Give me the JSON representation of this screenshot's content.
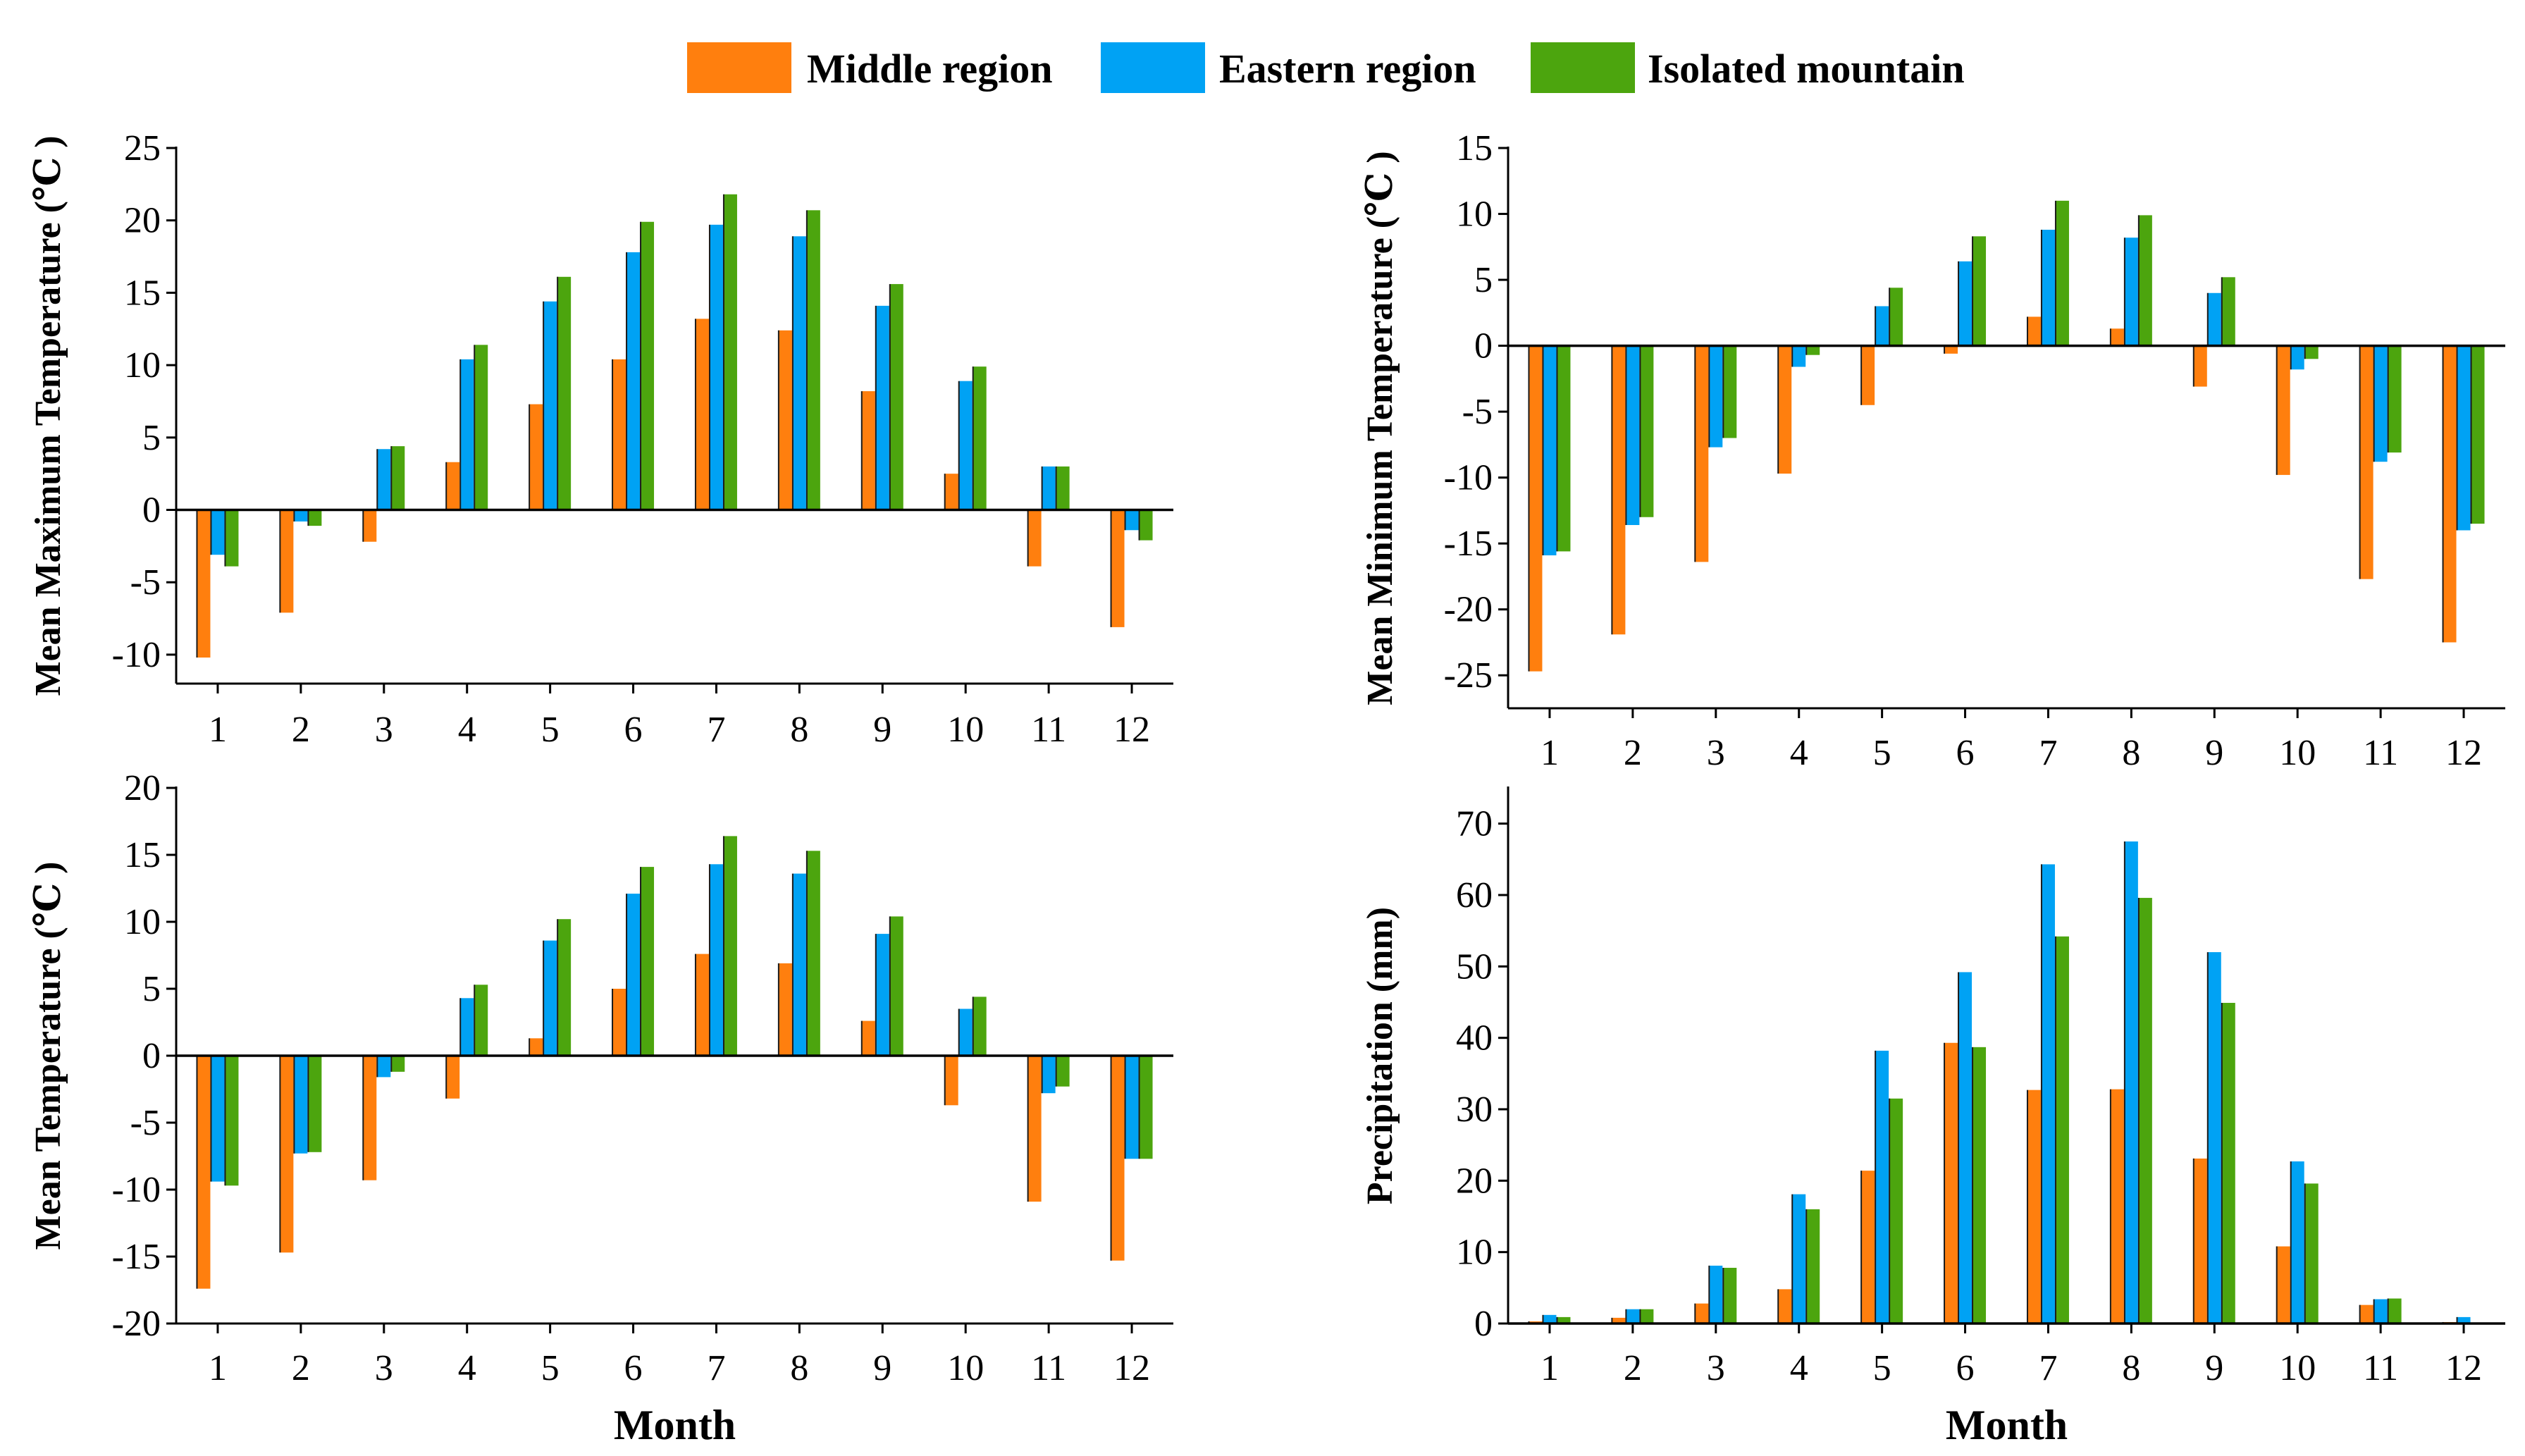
{
  "legend": [
    {
      "name": "Middle region",
      "color": "#FF7F0E"
    },
    {
      "name": "Eastern region",
      "color": "#00A2F4"
    },
    {
      "name": "Isolated mountain",
      "color": "#4CA50E"
    }
  ],
  "chart_data": [
    {
      "type": "bar",
      "ylabel": "Mean Maximum Temperature (℃ )",
      "xlabel": "",
      "categories": [
        "1",
        "2",
        "3",
        "4",
        "5",
        "6",
        "7",
        "8",
        "9",
        "10",
        "11",
        "12"
      ],
      "ylim": [
        -12,
        25
      ],
      "yticks": [
        -10,
        -5,
        0,
        5,
        10,
        15,
        20,
        25
      ],
      "series": [
        {
          "name": "Middle region",
          "values": [
            -10.2,
            -7.1,
            -2.2,
            3.3,
            7.3,
            10.4,
            13.2,
            12.4,
            8.2,
            2.5,
            -3.9,
            -8.1
          ]
        },
        {
          "name": "Eastern region",
          "values": [
            -3.1,
            -0.8,
            4.2,
            10.4,
            14.4,
            17.8,
            19.7,
            18.9,
            14.1,
            8.9,
            3.0,
            -1.4
          ]
        },
        {
          "name": "Isolated mountain",
          "values": [
            -3.9,
            -1.1,
            4.4,
            11.4,
            16.1,
            19.9,
            21.8,
            20.7,
            15.6,
            9.9,
            3.0,
            -2.1
          ]
        }
      ]
    },
    {
      "type": "bar",
      "ylabel": "Mean Minimum Temperature (℃ )",
      "xlabel": "",
      "categories": [
        "1",
        "2",
        "3",
        "4",
        "5",
        "6",
        "7",
        "8",
        "9",
        "10",
        "11",
        "12"
      ],
      "ylim": [
        -27.5,
        15
      ],
      "yticks": [
        -25,
        -20,
        -15,
        -10,
        -5,
        0,
        5,
        10,
        15
      ],
      "series": [
        {
          "name": "Middle region",
          "values": [
            -24.7,
            -21.9,
            -16.4,
            -9.7,
            -4.5,
            -0.6,
            2.2,
            1.3,
            -3.1,
            -9.8,
            -17.7,
            -22.5
          ]
        },
        {
          "name": "Eastern region",
          "values": [
            -15.9,
            -13.6,
            -7.7,
            -1.6,
            3.0,
            6.4,
            8.8,
            8.2,
            4.0,
            -1.8,
            -8.8,
            -14.0
          ]
        },
        {
          "name": "Isolated mountain",
          "values": [
            -15.6,
            -13.0,
            -7.0,
            -0.7,
            4.4,
            8.3,
            11.0,
            9.9,
            5.2,
            -1.0,
            -8.1,
            -13.5
          ]
        }
      ]
    },
    {
      "type": "bar",
      "ylabel": "Mean Temperature (℃ )",
      "xlabel": "Month",
      "categories": [
        "1",
        "2",
        "3",
        "4",
        "5",
        "6",
        "7",
        "8",
        "9",
        "10",
        "11",
        "12"
      ],
      "ylim": [
        -20,
        20
      ],
      "yticks": [
        -20,
        -15,
        -10,
        -5,
        0,
        5,
        10,
        15,
        20
      ],
      "series": [
        {
          "name": "Middle region",
          "values": [
            -17.4,
            -14.7,
            -9.3,
            -3.2,
            1.3,
            5.0,
            7.6,
            6.9,
            2.6,
            -3.7,
            -10.9,
            -15.3
          ]
        },
        {
          "name": "Eastern region",
          "values": [
            -9.4,
            -7.3,
            -1.6,
            4.3,
            8.6,
            12.1,
            14.3,
            13.6,
            9.1,
            3.5,
            -2.8,
            -7.7
          ]
        },
        {
          "name": "Isolated mountain",
          "values": [
            -9.7,
            -7.2,
            -1.2,
            5.3,
            10.2,
            14.1,
            16.4,
            15.3,
            10.4,
            4.4,
            -2.3,
            -7.7
          ]
        }
      ]
    },
    {
      "type": "bar",
      "ylabel": "Precipitation (mm)",
      "xlabel": "Month",
      "categories": [
        "1",
        "2",
        "3",
        "4",
        "5",
        "6",
        "7",
        "8",
        "9",
        "10",
        "11",
        "12"
      ],
      "ylim": [
        0,
        75
      ],
      "yticks": [
        0,
        10,
        20,
        30,
        40,
        50,
        60,
        70
      ],
      "series": [
        {
          "name": "Middle region",
          "values": [
            0.3,
            0.8,
            2.8,
            4.8,
            21.4,
            39.3,
            32.7,
            32.8,
            23.1,
            10.8,
            2.6,
            0.2
          ]
        },
        {
          "name": "Eastern region",
          "values": [
            1.2,
            2.0,
            8.1,
            18.1,
            38.2,
            49.2,
            64.3,
            67.5,
            52.0,
            22.7,
            3.4,
            0.9
          ]
        },
        {
          "name": "Isolated mountain",
          "values": [
            0.9,
            2.0,
            7.8,
            16.0,
            31.5,
            38.7,
            54.2,
            59.6,
            44.9,
            19.6,
            3.5,
            0.0
          ]
        }
      ]
    }
  ]
}
